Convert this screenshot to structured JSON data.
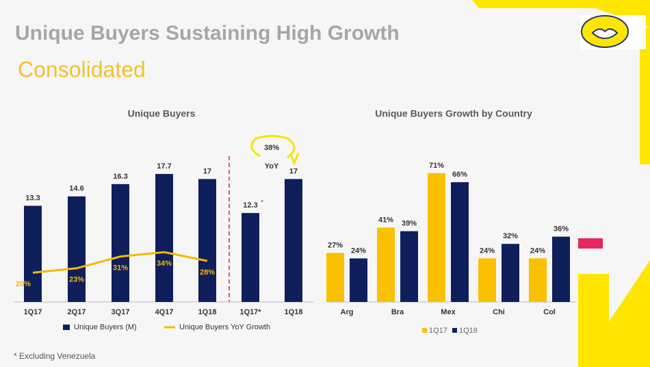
{
  "slide": {
    "title": "Unique Buyers Sustaining High Growth",
    "subtitle": "Consolidated",
    "footnote": "* Excluding Venezuela"
  },
  "chart_data": [
    {
      "type": "bar",
      "title": "Unique Buyers",
      "categories": [
        "1Q17",
        "2Q17",
        "3Q17",
        "4Q17",
        "1Q18",
        "1Q17*",
        "1Q18"
      ],
      "series": [
        {
          "name": "Unique Buyers (M)",
          "color": "#0f1f5c",
          "values": [
            13.3,
            14.6,
            16.3,
            17.7,
            17.0,
            12.3,
            17.0
          ]
        },
        {
          "name": "Unique Buyers YoY Growth",
          "type": "line",
          "color": "#f5b800",
          "values": [
            20,
            23,
            31,
            34,
            28,
            null,
            null
          ],
          "value_labels": [
            "20%",
            "23%",
            "31%",
            "34%",
            "28%",
            null,
            null
          ]
        }
      ],
      "annotations": [
        "38%",
        "YoY",
        "*"
      ]
    },
    {
      "type": "bar",
      "title": "Unique Buyers Growth by Country",
      "categories": [
        "Arg",
        "Bra",
        "Mex",
        "Chi",
        "Col"
      ],
      "series": [
        {
          "name": "1Q17",
          "color": "#fbc000",
          "values": [
            27,
            41,
            71,
            24,
            24
          ],
          "value_labels": [
            "27%",
            "41%",
            "71%",
            "24%",
            "24%"
          ]
        },
        {
          "name": "1Q18",
          "color": "#0f1f5c",
          "values": [
            24,
            39,
            66,
            32,
            36
          ],
          "value_labels": [
            "24%",
            "39%",
            "66%",
            "32%",
            "36%"
          ]
        }
      ]
    }
  ]
}
